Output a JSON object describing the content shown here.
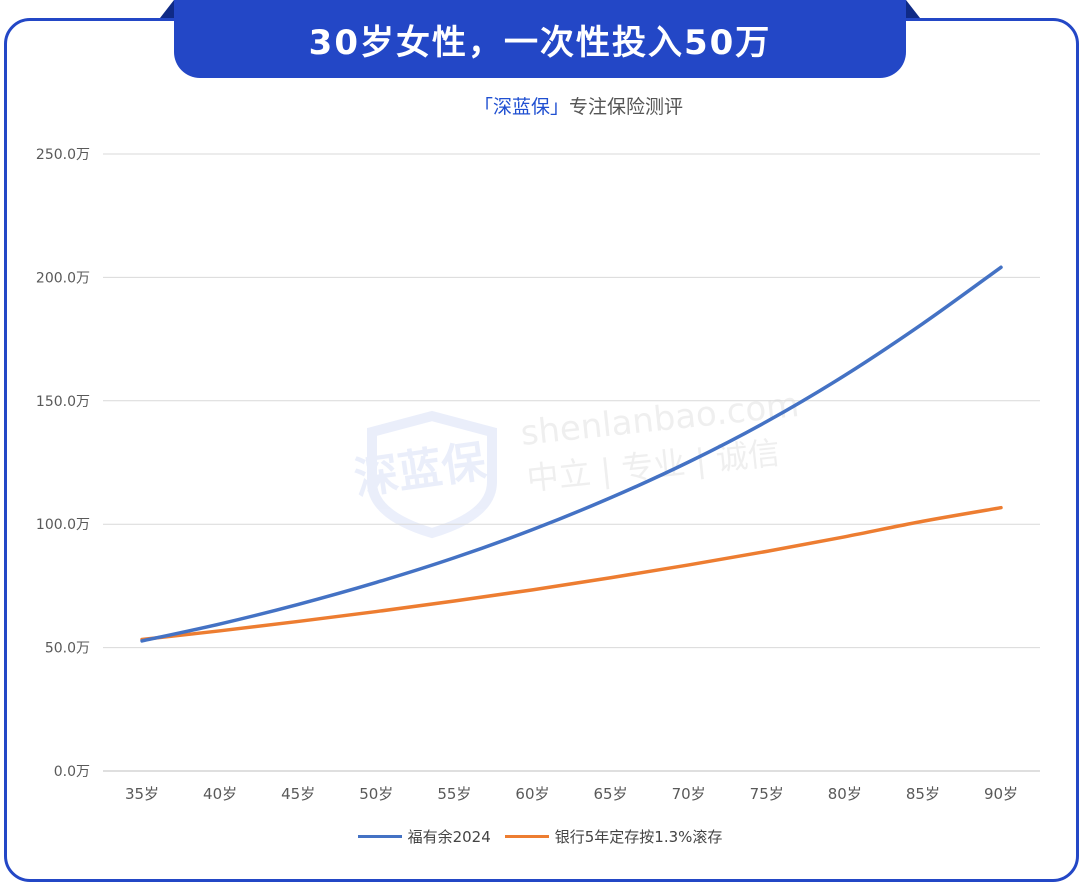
{
  "header": {
    "title": "30岁女性，一次性投入50万",
    "subtitle_brand": "「深蓝保」",
    "subtitle_rest": "专注保险测评"
  },
  "watermark": {
    "logo_text": "深蓝保",
    "domain": "shenlanbao.com",
    "slogan": "中立 | 专业 | 诚信"
  },
  "colors": {
    "accent": "#2347c6",
    "series1": "#4472c4",
    "series2": "#ed7d31",
    "grid": "#d9d9d9"
  },
  "chart_data": {
    "type": "line",
    "title": "",
    "xlabel": "",
    "ylabel": "",
    "categories": [
      "35岁",
      "40岁",
      "45岁",
      "50岁",
      "55岁",
      "60岁",
      "65岁",
      "70岁",
      "75岁",
      "80岁",
      "85岁",
      "90岁"
    ],
    "y_ticks": [
      "0.0万",
      "50.0万",
      "100.0万",
      "150.0万",
      "200.0万",
      "250.0万"
    ],
    "ylim": [
      0,
      250
    ],
    "y_unit": "万",
    "grid": true,
    "legend_position": "bottom",
    "series": [
      {
        "name": "福有余2024",
        "color": "#4472c4",
        "values": [
          52.7,
          59.6,
          67.5,
          76.4,
          86.4,
          97.8,
          110.7,
          125.2,
          141.6,
          160.3,
          181.3,
          204.1
        ]
      },
      {
        "name": "银行5年定存按1.3%滚存",
        "color": "#ed7d31",
        "values": [
          53.3,
          56.8,
          60.6,
          64.6,
          68.9,
          73.4,
          78.3,
          83.5,
          89.0,
          94.9,
          101.2,
          106.7
        ]
      }
    ]
  }
}
